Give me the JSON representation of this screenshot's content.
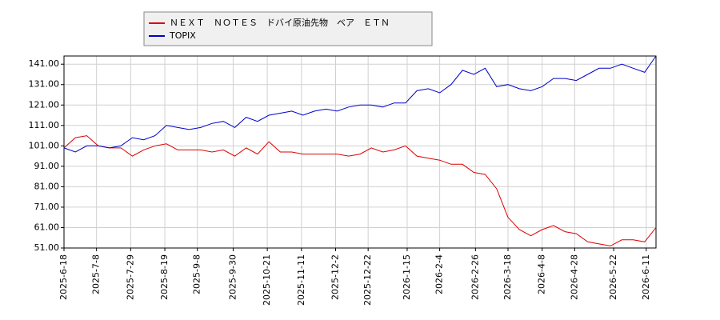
{
  "chart_data": {
    "type": "line",
    "x": [
      "2025-6-18",
      "2025-6-25",
      "2025-7-2",
      "2025-7-9",
      "2025-7-16",
      "2025-7-23",
      "2025-7-30",
      "2025-8-6",
      "2025-8-13",
      "2025-8-20",
      "2025-8-27",
      "2025-9-3",
      "2025-9-10",
      "2025-9-17",
      "2025-9-24",
      "2025-10-1",
      "2025-10-8",
      "2025-10-15",
      "2025-10-22",
      "2025-10-29",
      "2025-11-5",
      "2025-11-12",
      "2025-11-19",
      "2025-11-26",
      "2025-12-3",
      "2025-12-10",
      "2025-12-17",
      "2025-12-24",
      "2025-12-31",
      "2026-1-7",
      "2026-1-14",
      "2026-1-21",
      "2026-1-28",
      "2026-2-4",
      "2026-2-11",
      "2026-2-18",
      "2026-2-25",
      "2026-3-4",
      "2026-3-11",
      "2026-3-18",
      "2026-3-25",
      "2026-4-1",
      "2026-4-8",
      "2026-4-15",
      "2026-4-22",
      "2026-4-29",
      "2026-5-6",
      "2026-5-13",
      "2026-5-20",
      "2026-5-27",
      "2026-6-3",
      "2026-6-10",
      "2026-6-17"
    ],
    "series": [
      {
        "name": "ＮＥＸＴ　ＮＯＴＥＳ　ドバイ原油先物　ベア　ＥＴＮ",
        "color": "#dd0000",
        "values": [
          100,
          105,
          106,
          101,
          100,
          100,
          96,
          99,
          101,
          102,
          99,
          99,
          99,
          98,
          99,
          96,
          100,
          97,
          103,
          98,
          98,
          97,
          97,
          97,
          97,
          96,
          97,
          100,
          98,
          99,
          101,
          96,
          95,
          94,
          92,
          92,
          88,
          87,
          80,
          66,
          60,
          57,
          60,
          62,
          59,
          58,
          54,
          53,
          52,
          55,
          55,
          54,
          61
        ]
      },
      {
        "name": "TOPIX",
        "color": "#0000cc",
        "values": [
          100,
          98,
          101,
          101,
          100,
          101,
          105,
          104,
          106,
          111,
          110,
          109,
          110,
          112,
          113,
          110,
          115,
          113,
          116,
          117,
          118,
          116,
          118,
          119,
          118,
          120,
          121,
          121,
          120,
          122,
          122,
          128,
          129,
          127,
          131,
          138,
          136,
          139,
          130,
          131,
          129,
          128,
          130,
          134,
          134,
          133,
          136,
          139,
          139,
          141,
          139,
          137,
          145
        ]
      }
    ],
    "xlim": [
      "2025-6-18",
      "2026-6-17"
    ],
    "xticks": [
      "2025-6-18",
      "2025-7-8",
      "2025-7-29",
      "2025-8-19",
      "2025-9-8",
      "2025-9-30",
      "2025-10-21",
      "2025-11-11",
      "2025-12-2",
      "2025-12-22",
      "2026-1-15",
      "2026-2-4",
      "2026-2-26",
      "2026-3-18",
      "2026-4-8",
      "2026-4-28",
      "2026-5-22",
      "2026-6-11"
    ],
    "ylim": [
      51,
      145
    ],
    "yticks": [
      {
        "value": 51,
        "label": "51.00"
      },
      {
        "value": 61,
        "label": "61.00"
      },
      {
        "value": 71,
        "label": "71.00"
      },
      {
        "value": 81,
        "label": "81.00"
      },
      {
        "value": 91,
        "label": "91.00"
      },
      {
        "value": 101,
        "label": "101.00"
      },
      {
        "value": 111,
        "label": "111.00"
      },
      {
        "value": 121,
        "label": "121.00"
      },
      {
        "value": 131,
        "label": "131.00"
      },
      {
        "value": 141,
        "label": "141.00"
      }
    ],
    "grid": true
  }
}
